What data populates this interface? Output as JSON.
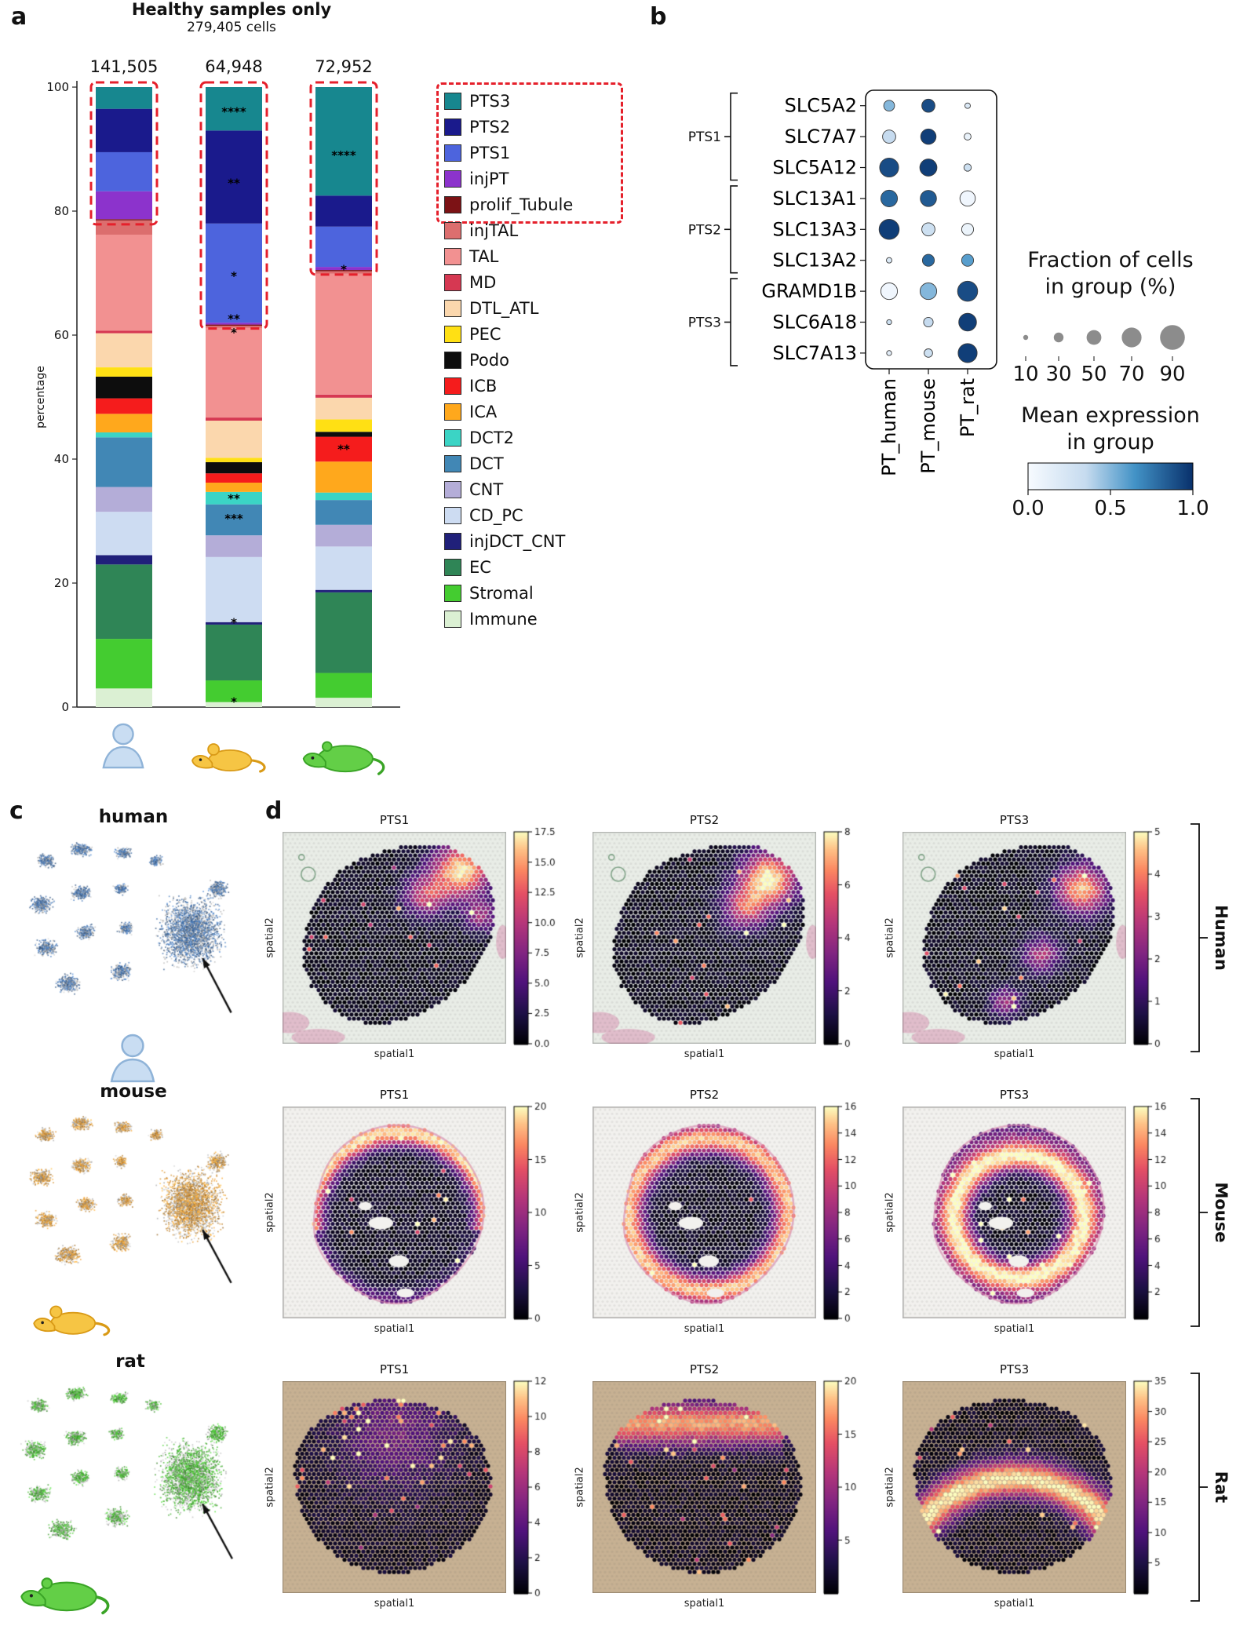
{
  "chart_data": {
    "panel_a": {
      "label": "a",
      "type": "bar",
      "stacked": true,
      "title": "Healthy samples only",
      "subtitle": "279,405 cells",
      "ylabel": "percentage",
      "ylim": [
        0,
        100
      ],
      "yticks": [
        0,
        20,
        40,
        60,
        80,
        100
      ],
      "pt_box_color": "#e5202b",
      "bars": [
        {
          "species": "human",
          "total": "141,505",
          "pt_box_bottom": 78.5,
          "stars": []
        },
        {
          "species": "mouse",
          "total": "64,948",
          "pt_box_bottom": 61.7,
          "stars": [
            {
              "pct": 96,
              "text": "****"
            },
            {
              "pct": 84.5,
              "text": "**"
            },
            {
              "pct": 69.5,
              "text": "*"
            },
            {
              "pct": 62.6,
              "text": "**"
            },
            {
              "pct": 60.4,
              "text": "*"
            },
            {
              "pct": 33.6,
              "text": "**"
            },
            {
              "pct": 30.4,
              "text": "***"
            },
            {
              "pct": 13.6,
              "text": "*"
            },
            {
              "pct": 0.8,
              "text": "*"
            }
          ]
        },
        {
          "species": "rat",
          "total": "72,952",
          "pt_box_bottom": 70.4,
          "stars": [
            {
              "pct": 89,
              "text": "****"
            },
            {
              "pct": 70.6,
              "text": "*"
            },
            {
              "pct": 41.6,
              "text": "**"
            }
          ]
        }
      ],
      "cell_types": [
        {
          "label": "PTS3",
          "color": "#17878f",
          "values": [
            3.5,
            7,
            17.5
          ]
        },
        {
          "label": "PTS2",
          "color": "#1a1a8c",
          "values": [
            7,
            15,
            5
          ]
        },
        {
          "label": "PTS1",
          "color": "#4d64dd",
          "values": [
            6.3,
            16,
            6.5
          ]
        },
        {
          "label": "injPT",
          "color": "#8c33cc",
          "values": [
            4.5,
            0.3,
            0.5
          ]
        },
        {
          "label": "prolif_Tubule",
          "color": "#7c1215",
          "values": [
            0.2,
            0.2,
            0.2
          ]
        },
        {
          "label": "injTAL",
          "color": "#dc6e6e",
          "values": [
            2.3,
            0.3,
            0.4
          ]
        },
        {
          "label": "TAL",
          "color": "#f29191",
          "values": [
            15.5,
            14.5,
            19.5
          ]
        },
        {
          "label": "MD",
          "color": "#d63852",
          "values": [
            0.4,
            0.5,
            0.5
          ]
        },
        {
          "label": "DTL_ATL",
          "color": "#fbd7ad",
          "values": [
            5.5,
            6,
            3.5
          ]
        },
        {
          "label": "PEC",
          "color": "#ffe014",
          "values": [
            1.5,
            0.7,
            2
          ]
        },
        {
          "label": "Podo",
          "color": "#0d0d0d",
          "values": [
            3.5,
            1.8,
            0.8
          ]
        },
        {
          "label": "ICB",
          "color": "#f51c1c",
          "values": [
            2.5,
            1.5,
            4
          ]
        },
        {
          "label": "ICA",
          "color": "#ffa81c",
          "values": [
            3,
            1.5,
            5
          ]
        },
        {
          "label": "DCT2",
          "color": "#3bd4c5",
          "values": [
            0.8,
            2,
            1.2
          ]
        },
        {
          "label": "DCT",
          "color": "#4187b5",
          "values": [
            8,
            5,
            4
          ]
        },
        {
          "label": "CNT",
          "color": "#b4add8",
          "values": [
            4,
            3.5,
            3.5
          ]
        },
        {
          "label": "CD_PC",
          "color": "#cddcf2",
          "values": [
            7,
            10.5,
            7
          ]
        },
        {
          "label": "injDCT_CNT",
          "color": "#20207a",
          "values": [
            1.5,
            0.4,
            0.4
          ]
        },
        {
          "label": "EC",
          "color": "#2f8556",
          "values": [
            12,
            9,
            13
          ]
        },
        {
          "label": "Stromal",
          "color": "#44cc30",
          "values": [
            8,
            3.5,
            4
          ]
        },
        {
          "label": "Immune",
          "color": "#dbf0d3",
          "values": [
            3,
            0.8,
            1.5
          ]
        }
      ]
    },
    "panel_b": {
      "label": "b",
      "type": "dotplot",
      "columns": [
        "PT_human",
        "PT_mouse",
        "PT_rat"
      ],
      "groups": [
        {
          "name": "PTS1",
          "span": [
            0,
            2
          ]
        },
        {
          "name": "PTS2",
          "span": [
            3,
            5
          ]
        },
        {
          "name": "PTS3",
          "span": [
            6,
            8
          ]
        }
      ],
      "genes": [
        {
          "name": "SLC5A2",
          "group": "PTS1",
          "fraction": [
            35,
            45,
            12
          ],
          "expression": [
            0.5,
            0.9,
            0.2
          ]
        },
        {
          "name": "SLC7A7",
          "group": "PTS1",
          "fraction": [
            45,
            55,
            18
          ],
          "expression": [
            0.35,
            0.95,
            0.1
          ]
        },
        {
          "name": "SLC5A12",
          "group": "PTS1",
          "fraction": [
            70,
            62,
            20
          ],
          "expression": [
            0.9,
            0.95,
            0.3
          ]
        },
        {
          "name": "SLC13A1",
          "group": "PTS2",
          "fraction": [
            60,
            58,
            55
          ],
          "expression": [
            0.8,
            0.85,
            0.05
          ]
        },
        {
          "name": "SLC13A3",
          "group": "PTS2",
          "fraction": [
            75,
            45,
            40
          ],
          "expression": [
            0.95,
            0.3,
            0.08
          ]
        },
        {
          "name": "SLC13A2",
          "group": "PTS2",
          "fraction": [
            12,
            40,
            40
          ],
          "expression": [
            0.2,
            0.8,
            0.6
          ]
        },
        {
          "name": "GRAMD1B",
          "group": "PTS3",
          "fraction": [
            60,
            60,
            75
          ],
          "expression": [
            0.05,
            0.5,
            0.9
          ]
        },
        {
          "name": "SLC6A18",
          "group": "PTS3",
          "fraction": [
            10,
            30,
            65
          ],
          "expression": [
            0.3,
            0.35,
            0.95
          ]
        },
        {
          "name": "SLC7A13",
          "group": "PTS3",
          "fraction": [
            10,
            25,
            70
          ],
          "expression": [
            0.15,
            0.3,
            0.95
          ]
        }
      ],
      "size_legend": {
        "title_line1": "Fraction of cells",
        "title_line2": "in group (%)",
        "ticks": [
          "10",
          "30",
          "50",
          "70",
          "90"
        ]
      },
      "color_legend": {
        "title_line1": "Mean expression",
        "title_line2": "in group",
        "ticks": [
          "0.0",
          "0.5",
          "1.0"
        ]
      }
    },
    "panel_c": {
      "label": "c",
      "plots": [
        {
          "title": "human",
          "color": "#4d7fbe"
        },
        {
          "title": "mouse",
          "color": "#f2a63c"
        },
        {
          "title": "rat",
          "color": "#4ec938"
        }
      ]
    },
    "panel_d": {
      "label": "d",
      "type": "heatmap",
      "xlabel": "spatial1",
      "ylabel": "spatial2",
      "row_labels": [
        "Human",
        "Mouse",
        "Rat"
      ],
      "plots": [
        {
          "row": "Human",
          "title": "PTS1",
          "vmax": 17.5,
          "cbar_ticks": [
            "0.0",
            "2.5",
            "5.0",
            "7.5",
            "10.0",
            "12.5",
            "15.0",
            "17.5"
          ],
          "bg": "#e9ede7"
        },
        {
          "row": "Human",
          "title": "PTS2",
          "vmax": 8,
          "cbar_ticks": [
            "0",
            "2",
            "4",
            "6",
            "8"
          ],
          "bg": "#e9ede7"
        },
        {
          "row": "Human",
          "title": "PTS3",
          "vmax": 5,
          "cbar_ticks": [
            "0",
            "1",
            "2",
            "3",
            "4",
            "5"
          ],
          "bg": "#e9ede7"
        },
        {
          "row": "Mouse",
          "title": "PTS1",
          "vmax": 20,
          "cbar_ticks": [
            "0",
            "5",
            "10",
            "15",
            "20"
          ],
          "bg": "#f2f1ee"
        },
        {
          "row": "Mouse",
          "title": "PTS2",
          "vmax": 16,
          "cbar_ticks": [
            "0",
            "2",
            "4",
            "6",
            "8",
            "10",
            "12",
            "14",
            "16"
          ],
          "bg": "#f2f1ee"
        },
        {
          "row": "Mouse",
          "title": "PTS3",
          "vmax": 16,
          "cbar_ticks": [
            "2",
            "4",
            "6",
            "8",
            "10",
            "12",
            "14",
            "16"
          ],
          "bg": "#f2f1ee"
        },
        {
          "row": "Rat",
          "title": "PTS1",
          "vmax": 12,
          "cbar_ticks": [
            "0",
            "2",
            "4",
            "6",
            "8",
            "10",
            "12"
          ],
          "bg": "#c7b193"
        },
        {
          "row": "Rat",
          "title": "PTS2",
          "vmax": 20,
          "cbar_ticks": [
            "5",
            "10",
            "15",
            "20"
          ],
          "bg": "#c7b193"
        },
        {
          "row": "Rat",
          "title": "PTS3",
          "vmax": 35,
          "cbar_ticks": [
            "5",
            "10",
            "15",
            "20",
            "25",
            "30",
            "35"
          ],
          "bg": "#c7b193"
        }
      ]
    }
  }
}
